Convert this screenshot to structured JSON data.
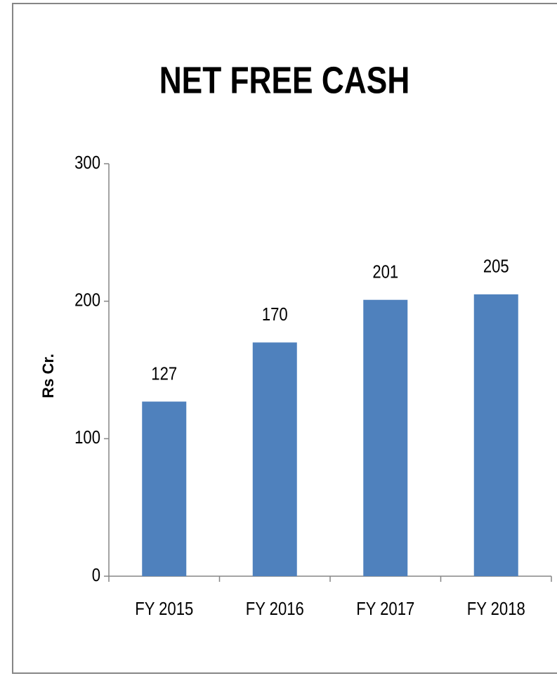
{
  "chart_data": {
    "type": "bar",
    "title": "NET FREE CASH",
    "y_label": "Rs Cr.",
    "categories": [
      "FY 2015",
      "FY 2016",
      "FY 2017",
      "FY 2018"
    ],
    "values": [
      127,
      170,
      201,
      205
    ],
    "color": "#4f81bd",
    "ylim": [
      0,
      300
    ],
    "yticks": [
      0,
      100,
      200,
      300
    ],
    "grid": false
  }
}
